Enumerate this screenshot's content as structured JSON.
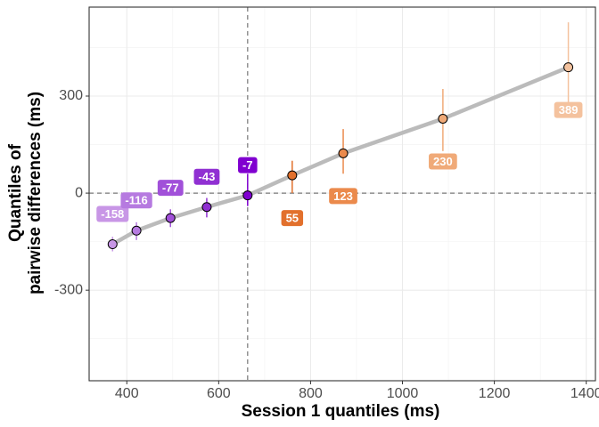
{
  "chart_data": {
    "type": "shift",
    "x_label": "Session 1 quantiles (ms)",
    "y_label": [
      "Quantiles of",
      "pairwise differences (ms)"
    ],
    "x": [
      369,
      421,
      495,
      574,
      663,
      760,
      871,
      1088,
      1361
    ],
    "values": [
      -158,
      -116,
      -77,
      -43,
      -7,
      55,
      123,
      230,
      389
    ],
    "lower": [
      -180,
      -145,
      -105,
      -75,
      -40,
      0,
      60,
      130,
      280
    ],
    "upper": [
      -135,
      -90,
      -50,
      -15,
      60,
      100,
      198,
      322,
      528
    ],
    "colors": [
      "#c896e6",
      "#b67ae0",
      "#a150d9",
      "#9030d2",
      "#8000d0",
      "#e2702c",
      "#eb8a4c",
      "#f0aa78",
      "#f4c29e"
    ],
    "line_color": "#bbbbbb",
    "xlim": [
      318,
      1420
    ],
    "ylim": [
      -580,
      575
    ],
    "xticks": [
      400,
      600,
      800,
      1000,
      1200,
      1400
    ],
    "yticks": [
      -300,
      0,
      300
    ],
    "grid": true
  }
}
